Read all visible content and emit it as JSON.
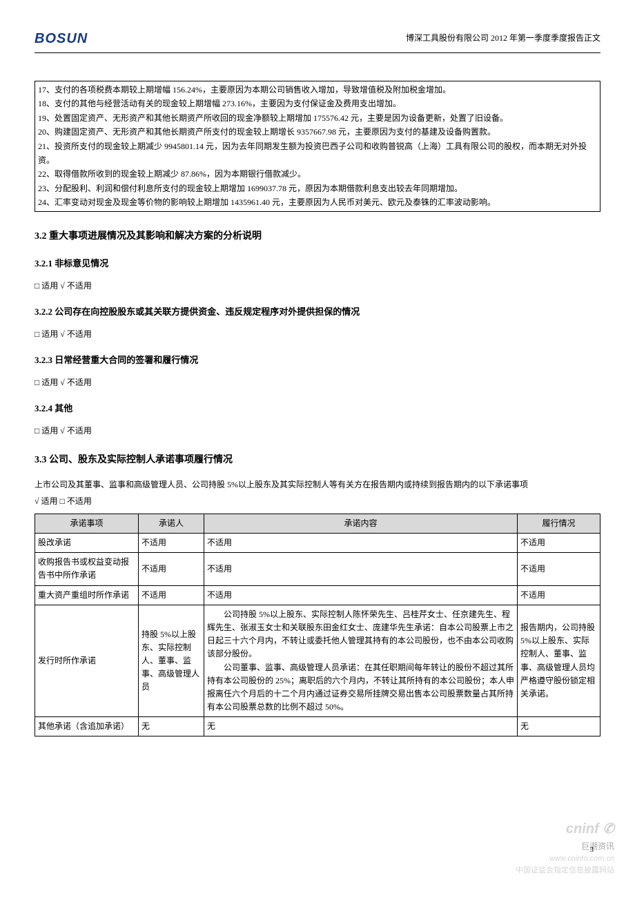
{
  "header": {
    "logo": "BOSUN",
    "title": "博深工具股份有限公司 2012 年第一季度季度报告正文"
  },
  "notes": [
    "17、支付的各项税费本期较上期增幅 156.24%，主要原因为本期公司销售收入增加，导致增值税及附加税金增加。",
    "18、支付的其他与经营活动有关的现金较上期增幅 273.16%，主要因为支付保证金及费用支出增加。",
    "19、处置固定资产、无形资产和其他长期资产所收回的现金净额较上期增加 175576.42 元，主要是因为设备更新，处置了旧设备。",
    "20、购建固定资产、无形资产和其他长期资产所支付的现金较上期增长 9357667.98 元，主要原因为支付的基建及设备购置款。",
    "21、投资所支付的现金较上期减少 9945801.14 元，因为去年同期发生额为投资巴西子公司和收购普锐高（上海）工具有限公司的股权，而本期无对外投资。",
    "22、取得借款所收到的现金较上期减少 87.86%，因为本期银行借款减少。",
    "23、分配股利、利润和偿付利息所支付的现金较上期增加 1699037.78 元，原因为本期借款利息支出较去年同期增加。",
    "24、汇率变动对现金及现金等价物的影响较上期增加 1435961.40 元，主要原因为人民币对美元、欧元及泰铢的汇率波动影响。"
  ],
  "sections": {
    "s32": "3.2 重大事项进展情况及其影响和解决方案的分析说明",
    "s321": "3.2.1 非标意见情况",
    "s322": "3.2.2 公司存在向控股股东或其关联方提供资金、违反规定程序对外提供担保的情况",
    "s323": "3.2.3 日常经营重大合同的签署和履行情况",
    "s324": "3.2.4 其他",
    "s33": "3.3 公司、股东及实际控制人承诺事项履行情况"
  },
  "checks": {
    "not_applicable": "□ 适用 √ 不适用",
    "applicable": "√ 适用 □ 不适用"
  },
  "intro33": "上市公司及其董事、监事和高级管理人员、公司持股 5%以上股东及其实际控制人等有关方在报告期内或持续到报告期内的以下承诺事项",
  "table": {
    "headers": [
      "承诺事项",
      "承诺人",
      "承诺内容",
      "履行情况"
    ],
    "rows": [
      {
        "item": "股改承诺",
        "person": "不适用",
        "content": "不适用",
        "status": "不适用"
      },
      {
        "item": "收购报告书或权益变动报告书中所作承诺",
        "person": "不适用",
        "content": "不适用",
        "status": "不适用"
      },
      {
        "item": "重大资产重组时所作承诺",
        "person": "不适用",
        "content": "不适用",
        "status": "不适用"
      },
      {
        "item": "发行时所作承诺",
        "person": "持股 5%以上股东、实际控制人、董事、监事、高级管理人员",
        "content": "　　公司持股 5%以上股东、实际控制人陈怀荣先生、吕桂芹女士、任京建先生、程辉先生、张淑玉女士和关联股东田金红女士、庞建华先生承诺：自本公司股票上市之日起三十六个月内，不转让或委托他人管理其持有的本公司股份，也不由本公司收购该部分股份。\n　　公司董事、监事、高级管理人员承诺：在其任职期间每年转让的股份不超过其所持有本公司股份的 25%；离职后的六个月内，不转让其所持有的本公司股份；本人申报离任六个月后的十二个月内通过证券交易所挂牌交易出售本公司股票数量占其所持有本公司股票总数的比例不超过 50%。",
        "status": "报告期内，公司持股5%以上股东、实际控制人、董事、监事、高级管理人员均严格遵守股份锁定相关承诺。"
      },
      {
        "item": "其他承诺（含追加承诺）",
        "person": "无",
        "content": "无",
        "status": "无"
      }
    ]
  },
  "footer": {
    "page": "3",
    "watermark_brand": "cninf",
    "watermark_sub": "巨潮资讯",
    "watermark_url": "www.cninfo.com.cn",
    "watermark_desc": "中国证监会指定信息披露网站"
  }
}
